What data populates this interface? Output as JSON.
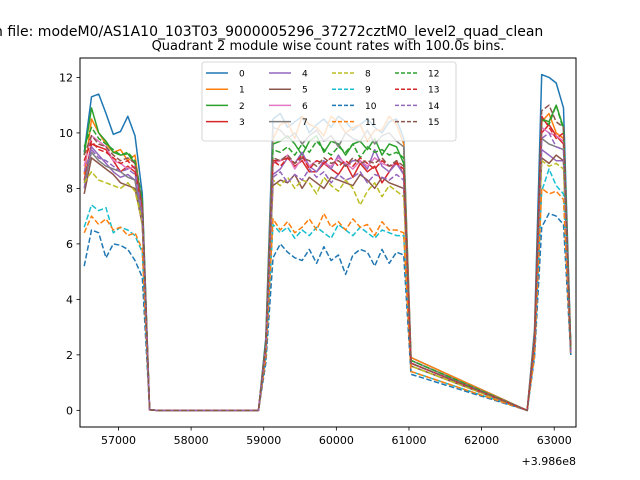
{
  "figure": {
    "suptitle": "n file: modeM0/AS1A10_103T03_9000005296_37272cztM0_level2_quad_clean",
    "title": "Quadrant 2 module wise count rates with 100.0s bins."
  },
  "chart_data": {
    "type": "line",
    "title": "Quadrant 2 module wise count rates with 100.0s bins.",
    "xlabel": "",
    "ylabel": "",
    "x_offset_label": "+3.986e8",
    "xlim": [
      56470,
      63300
    ],
    "ylim": [
      -0.6,
      12.7
    ],
    "xticks": [
      57000,
      58000,
      59000,
      60000,
      61000,
      62000,
      63000
    ],
    "yticks": [
      0,
      2,
      4,
      6,
      8,
      10,
      12
    ],
    "grid": false,
    "legend": {
      "placement": "top-center",
      "columns": 4
    },
    "x": [
      56528,
      56628,
      56728,
      56828,
      56928,
      57028,
      57128,
      57228,
      57328,
      57428,
      57528,
      58928,
      59028,
      59128,
      59228,
      59328,
      59428,
      59528,
      59628,
      59728,
      59828,
      59928,
      60028,
      60128,
      60228,
      60328,
      60428,
      60528,
      60628,
      60728,
      60828,
      60928,
      61028,
      62628,
      62728,
      62828,
      62928,
      63028,
      63128,
      63228
    ],
    "series": [
      {
        "name": "0",
        "color": "#1f77b4",
        "dash": "solid",
        "values": [
          9.3,
          11.3,
          11.4,
          10.7,
          9.95,
          10.05,
          10.6,
          9.9,
          7.8,
          0.02,
          0,
          0,
          2.6,
          10.5,
          10.7,
          10.2,
          10.4,
          10.6,
          10.0,
          10.3,
          10.5,
          10.2,
          10.6,
          10.4,
          10.1,
          10.3,
          10.5,
          10.2,
          10.0,
          10.4,
          10.5,
          9.8,
          1.9,
          0,
          2.9,
          12.1,
          12.0,
          11.8,
          10.9,
          2.3
        ]
      },
      {
        "name": "1",
        "color": "#ff7f0e",
        "dash": "solid",
        "values": [
          8.5,
          10.5,
          10.0,
          9.6,
          9.3,
          9.4,
          9.0,
          9.2,
          7.3,
          0.02,
          0,
          0,
          2.4,
          9.8,
          10.3,
          10.4,
          9.8,
          10.6,
          10.3,
          10.2,
          9.9,
          10.6,
          10.4,
          10.0,
          10.2,
          10.3,
          9.7,
          10.1,
          10.1,
          10.6,
          10.3,
          9.6,
          1.9,
          0,
          2.7,
          10.4,
          10.7,
          10.0,
          9.8,
          2.0
        ]
      },
      {
        "name": "2",
        "color": "#2ca02c",
        "dash": "solid",
        "values": [
          9.2,
          10.9,
          10.0,
          9.7,
          9.3,
          9.2,
          9.25,
          8.9,
          7.5,
          0.02,
          0,
          0,
          2.5,
          9.6,
          9.7,
          9.9,
          9.6,
          9.2,
          9.7,
          9.9,
          9.3,
          9.7,
          9.6,
          9.2,
          9.6,
          9.7,
          9.4,
          9.8,
          9.2,
          9.6,
          9.5,
          8.9,
          1.8,
          0,
          2.6,
          10.5,
          10.4,
          11.0,
          10.2,
          2.2
        ]
      },
      {
        "name": "3",
        "color": "#d62728",
        "dash": "solid",
        "values": [
          8.3,
          9.6,
          9.5,
          9.4,
          9.0,
          8.6,
          8.8,
          8.6,
          7.0,
          0.02,
          0,
          0,
          2.3,
          9.0,
          9.0,
          9.1,
          8.8,
          9.0,
          8.6,
          8.6,
          8.9,
          8.7,
          8.5,
          8.9,
          8.4,
          8.9,
          8.6,
          8.8,
          8.2,
          8.6,
          9.0,
          8.5,
          1.7,
          0,
          2.5,
          10.0,
          10.3,
          9.9,
          9.6,
          2.1
        ]
      },
      {
        "name": "4",
        "color": "#9467bd",
        "dash": "solid",
        "values": [
          8.0,
          9.5,
          9.2,
          8.9,
          8.6,
          8.4,
          8.5,
          8.3,
          6.8,
          0.02,
          0,
          0,
          2.2,
          8.5,
          8.7,
          9.1,
          8.9,
          9.3,
          8.8,
          8.6,
          9.0,
          8.7,
          9.2,
          8.8,
          9.0,
          9.0,
          8.7,
          9.4,
          8.8,
          8.6,
          8.9,
          8.5,
          1.7,
          0,
          2.4,
          9.4,
          9.2,
          9.0,
          9.0,
          2.0
        ]
      },
      {
        "name": "5",
        "color": "#8c564b",
        "dash": "solid",
        "values": [
          7.8,
          9.1,
          8.9,
          8.7,
          8.5,
          8.2,
          8.1,
          8.0,
          6.7,
          0.02,
          0,
          0,
          2.2,
          8.1,
          8.3,
          8.2,
          8.5,
          8.0,
          8.4,
          8.2,
          8.0,
          8.4,
          8.3,
          8.2,
          8.1,
          8.5,
          8.3,
          8.0,
          8.4,
          8.2,
          8.1,
          8.0,
          1.6,
          0,
          2.4,
          9.1,
          8.9,
          9.2,
          9.0,
          2.0
        ]
      },
      {
        "name": "6",
        "color": "#e377c2",
        "dash": "solid",
        "values": [
          8.8,
          9.9,
          9.7,
          9.5,
          9.0,
          8.9,
          8.7,
          8.8,
          7.2,
          0.02,
          0,
          0,
          2.3,
          8.9,
          9.0,
          9.2,
          8.7,
          9.1,
          8.8,
          9.0,
          8.9,
          8.8,
          9.1,
          8.9,
          8.7,
          9.0,
          8.8,
          9.1,
          8.9,
          8.8,
          8.9,
          8.7,
          1.7,
          0,
          2.6,
          10.2,
          10.0,
          9.9,
          9.7,
          2.1
        ]
      },
      {
        "name": "7",
        "color": "#7f7f7f",
        "dash": "solid",
        "values": [
          8.2,
          9.3,
          9.0,
          8.8,
          8.7,
          8.6,
          8.4,
          8.3,
          6.9,
          0.02,
          0,
          0,
          2.2,
          10.2,
          10.1,
          9.8,
          10.0,
          9.6,
          9.9,
          10.1,
          9.7,
          9.9,
          9.5,
          10.0,
          9.8,
          9.7,
          10.1,
          9.6,
          9.9,
          10.0,
          9.7,
          9.5,
          1.8,
          0,
          2.5,
          9.8,
          9.6,
          9.5,
          9.4,
          2.1
        ]
      },
      {
        "name": "8",
        "color": "#bcbd22",
        "dash": "dashed",
        "values": [
          8.2,
          8.6,
          8.3,
          8.2,
          8.1,
          8.0,
          8.2,
          7.9,
          6.8,
          0.02,
          0,
          0,
          2.1,
          8.3,
          8.1,
          8.4,
          8.0,
          8.3,
          8.2,
          7.8,
          8.4,
          8.1,
          7.9,
          8.3,
          8.0,
          7.4,
          7.9,
          8.2,
          7.7,
          8.1,
          7.9,
          7.7,
          1.6,
          0,
          2.3,
          9.0,
          8.8,
          8.9,
          8.7,
          2.0
        ]
      },
      {
        "name": "9",
        "color": "#17becf",
        "dash": "dashed",
        "values": [
          6.6,
          7.4,
          7.2,
          7.3,
          6.4,
          6.6,
          6.5,
          6.3,
          5.7,
          0.02,
          0,
          0,
          1.9,
          6.7,
          6.4,
          6.6,
          6.2,
          6.5,
          6.3,
          6.6,
          6.4,
          6.2,
          6.7,
          6.5,
          6.3,
          6.6,
          6.4,
          6.2,
          6.5,
          6.4,
          6.3,
          6.3,
          1.4,
          0,
          2.0,
          7.9,
          8.7,
          8.1,
          7.8,
          2.0
        ]
      },
      {
        "name": "10",
        "color": "#1f77b4",
        "dash": "dashed",
        "values": [
          5.2,
          6.5,
          6.4,
          5.5,
          6.0,
          5.95,
          5.8,
          5.4,
          4.8,
          0.02,
          0,
          0,
          1.7,
          5.5,
          6.0,
          5.7,
          5.5,
          5.4,
          5.8,
          5.3,
          5.9,
          5.4,
          5.6,
          4.9,
          5.6,
          5.8,
          5.7,
          5.2,
          5.8,
          5.3,
          5.7,
          5.6,
          1.3,
          0,
          1.9,
          6.6,
          7.1,
          7.0,
          6.7,
          2.0
        ]
      },
      {
        "name": "11",
        "color": "#ff7f0e",
        "dash": "dashed",
        "values": [
          6.4,
          7.0,
          6.7,
          6.9,
          6.5,
          6.6,
          6.3,
          6.4,
          5.8,
          0.02,
          0,
          0,
          1.9,
          6.9,
          6.5,
          6.8,
          6.4,
          6.6,
          6.9,
          6.5,
          7.1,
          6.6,
          6.8,
          6.5,
          6.9,
          6.6,
          6.7,
          6.3,
          6.8,
          6.5,
          6.5,
          6.4,
          1.4,
          0,
          2.0,
          8.0,
          7.8,
          7.9,
          7.6,
          2.0
        ]
      },
      {
        "name": "12",
        "color": "#2ca02c",
        "dash": "dashed",
        "values": [
          9.5,
          10.2,
          9.8,
          9.6,
          9.4,
          9.2,
          9.3,
          9.0,
          7.6,
          0.02,
          0,
          0,
          2.4,
          9.4,
          9.3,
          9.5,
          9.2,
          9.6,
          9.3,
          9.7,
          9.4,
          9.2,
          9.5,
          9.3,
          9.6,
          9.1,
          9.5,
          9.3,
          9.4,
          9.2,
          9.3,
          9.1,
          1.8,
          0,
          2.6,
          10.5,
          10.3,
          11.0,
          10.1,
          2.2
        ]
      },
      {
        "name": "13",
        "color": "#d62728",
        "dash": "dashed",
        "values": [
          9.0,
          9.7,
          9.4,
          9.3,
          9.1,
          8.9,
          9.0,
          8.7,
          7.3,
          0.02,
          0,
          0,
          2.3,
          9.0,
          8.8,
          9.1,
          8.9,
          9.2,
          8.7,
          9.0,
          8.9,
          9.1,
          8.8,
          9.0,
          8.8,
          9.1,
          8.9,
          8.7,
          9.0,
          8.8,
          8.9,
          8.7,
          1.7,
          0,
          2.5,
          10.6,
          10.2,
          9.8,
          10.0,
          2.1
        ]
      },
      {
        "name": "14",
        "color": "#9467bd",
        "dash": "dashed",
        "values": [
          8.6,
          9.4,
          9.1,
          9.0,
          8.8,
          8.6,
          8.7,
          8.5,
          7.1,
          0.02,
          0,
          0,
          2.3,
          8.4,
          8.6,
          8.2,
          8.5,
          8.3,
          8.7,
          8.4,
          8.6,
          8.2,
          8.5,
          8.3,
          8.4,
          8.6,
          8.2,
          8.5,
          8.4,
          8.3,
          8.5,
          8.3,
          1.7,
          0,
          2.5,
          9.8,
          10.0,
          9.5,
          9.4,
          2.1
        ]
      },
      {
        "name": "15",
        "color": "#8c564b",
        "dash": "dashed",
        "values": [
          9.2,
          9.9,
          9.6,
          9.5,
          9.2,
          9.0,
          9.1,
          8.9,
          7.4,
          0.02,
          0,
          0,
          2.4,
          9.1,
          9.0,
          9.2,
          8.9,
          9.1,
          9.0,
          8.8,
          9.1,
          8.9,
          9.0,
          8.8,
          9.1,
          8.9,
          9.0,
          8.9,
          9.1,
          8.8,
          9.0,
          8.8,
          1.7,
          0,
          2.6,
          10.8,
          11.0,
          10.4,
          10.2,
          2.2
        ]
      }
    ]
  }
}
